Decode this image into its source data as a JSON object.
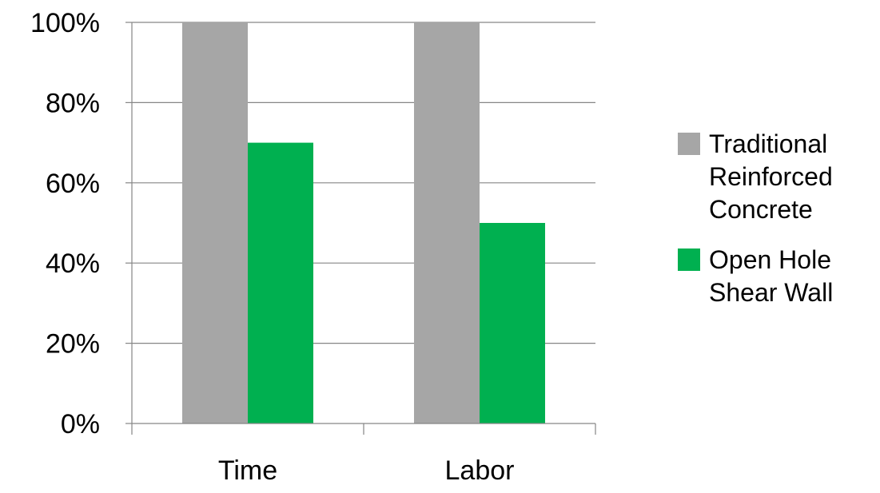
{
  "chart_data": {
    "type": "bar",
    "title": "",
    "xlabel": "",
    "ylabel": "",
    "categories": [
      "Time",
      "Labor"
    ],
    "series": [
      {
        "name": "Traditional Reinforced Concrete",
        "name_lines": [
          "Traditional",
          "Reinforced",
          "Concrete"
        ],
        "values": [
          100,
          100
        ],
        "color": "#A6A6A6"
      },
      {
        "name": "Open Hole Shear Wall",
        "name_lines": [
          "Open Hole",
          "Shear Wall"
        ],
        "values": [
          70,
          50
        ],
        "color": "#00B050"
      }
    ],
    "ylim": [
      0,
      100
    ],
    "yticks": [
      0,
      20,
      40,
      60,
      80,
      100
    ],
    "ytick_labels": [
      "0%",
      "20%",
      "40%",
      "60%",
      "80%",
      "100%"
    ],
    "grid": true,
    "legend_position": "right"
  }
}
